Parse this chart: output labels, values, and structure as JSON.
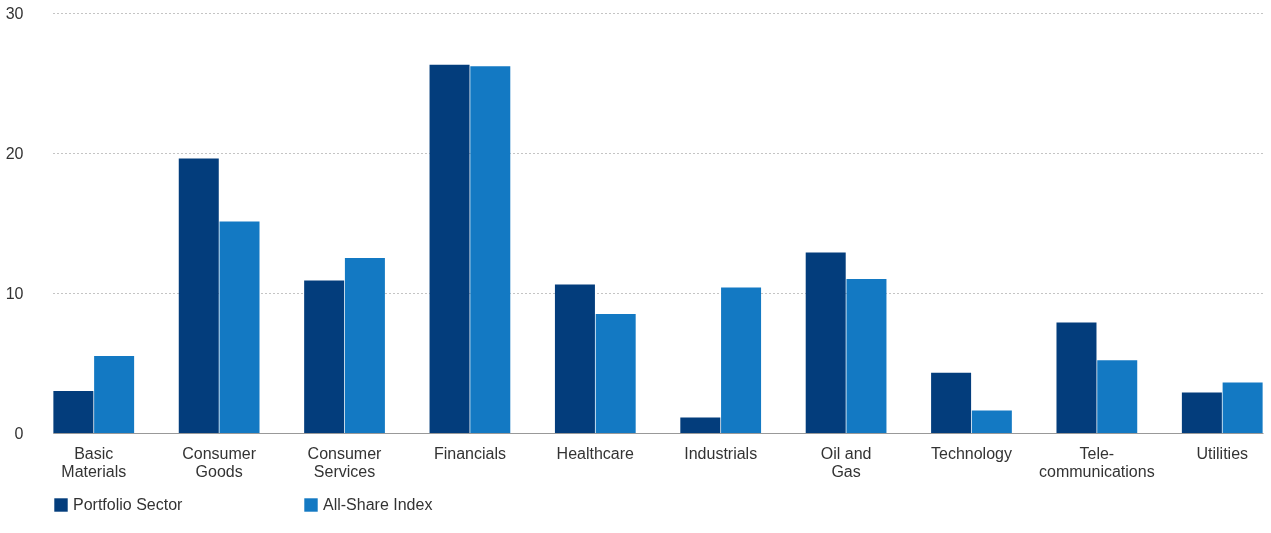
{
  "chart_data": {
    "type": "bar",
    "categories": [
      "Basic\nMaterials",
      "Consumer\nGoods",
      "Consumer\nServices",
      "Financials",
      "Healthcare",
      "Industrials",
      "Oil and\nGas",
      "Technology",
      "Tele-\ncommunications",
      "Utilities"
    ],
    "series": [
      {
        "name": "Portfolio Sector",
        "color": "#033d7c",
        "values": [
          3.0,
          19.6,
          10.9,
          26.3,
          10.6,
          1.1,
          12.9,
          4.3,
          7.9,
          2.9
        ]
      },
      {
        "name": "All-Share Index",
        "color": "#1379c3",
        "values": [
          5.5,
          15.1,
          12.5,
          26.2,
          8.5,
          10.4,
          11.0,
          1.6,
          5.2,
          3.6
        ]
      }
    ],
    "ylim": [
      0,
      30
    ],
    "yticks": [
      0,
      10,
      20,
      30
    ],
    "grid": "y",
    "legend": "bottom"
  }
}
